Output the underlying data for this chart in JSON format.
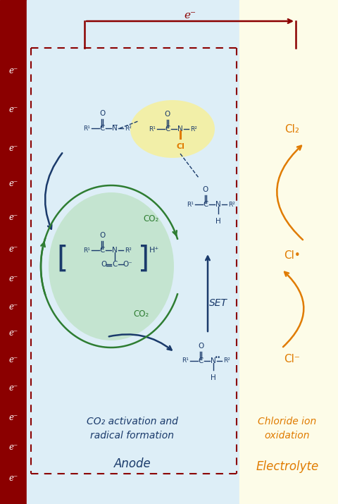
{
  "fig_width": 4.8,
  "fig_height": 7.15,
  "dpi": 100,
  "bg_color": "#ffffff",
  "anode_bg": "#ddeef7",
  "electrolyte_bg": "#fdfce8",
  "anode_bar_color": "#8b0000",
  "dashed_border_color": "#8b0000",
  "dark_blue": "#1a3a6b",
  "green": "#2e7d32",
  "orange": "#e07b00",
  "yellow_circle": "#f5f0a0",
  "green_circle": "#b8e0bb",
  "electron_label": "e⁻",
  "title_electron": "e⁻",
  "anode_label": "Anode",
  "electrolyte_label": "Electrolyte",
  "co2_activation_label": "CO₂ activation and\nradical formation",
  "chloride_label": "Chloride ion\noxidation",
  "e_positions": [
    100,
    155,
    210,
    260,
    308,
    353,
    395,
    435,
    472,
    510,
    550,
    592,
    635,
    678
  ]
}
